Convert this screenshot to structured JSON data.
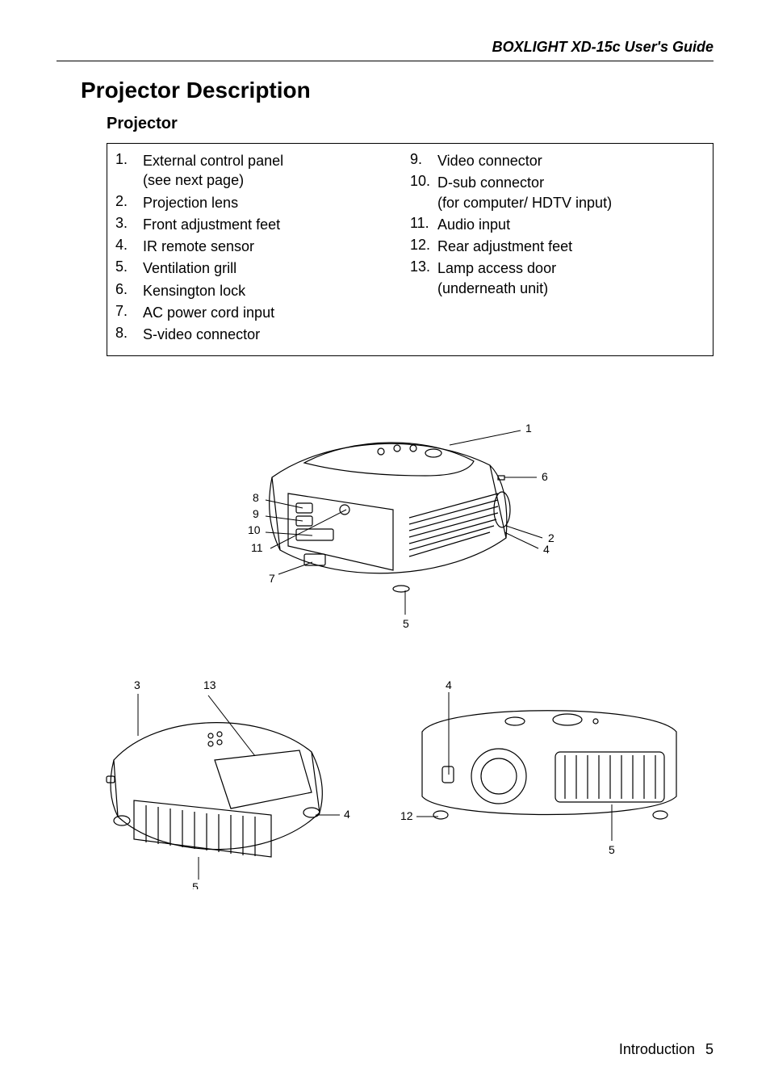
{
  "header": {
    "running": "BOXLIGHT XD-15c User's Guide"
  },
  "titles": {
    "section": "Projector Description",
    "subsection": "Projector"
  },
  "parts": {
    "left": [
      {
        "n": "1.",
        "label": "External control panel\n(see next page)"
      },
      {
        "n": "2.",
        "label": "Projection lens"
      },
      {
        "n": "3.",
        "label": "Front adjustment feet"
      },
      {
        "n": "4.",
        "label": "IR remote sensor"
      },
      {
        "n": "5.",
        "label": "Ventilation grill"
      },
      {
        "n": "6.",
        "label": "Kensington lock"
      },
      {
        "n": "7.",
        "label": "AC power cord input"
      },
      {
        "n": "8.",
        "label": "S-video connector"
      }
    ],
    "right": [
      {
        "n": "9.",
        "label": "Video connector"
      },
      {
        "n": "10.",
        "label": "D-sub connector\n(for computer/ HDTV input)"
      },
      {
        "n": "11.",
        "label": "Audio input"
      },
      {
        "n": "12.",
        "label": "Rear adjustment feet"
      },
      {
        "n": "13.",
        "label": "Lamp access door\n(underneath unit)"
      }
    ]
  },
  "callouts_top": [
    "1",
    "2",
    "4",
    "5",
    "6",
    "7",
    "8",
    "9",
    "10",
    "11"
  ],
  "callouts_bl": [
    "3",
    "4",
    "5",
    "13"
  ],
  "callouts_br": [
    "4",
    "5",
    "12"
  ],
  "footer": {
    "section": "Introduction",
    "page": "5"
  },
  "colors": {
    "stroke": "#000000",
    "bg": "#ffffff",
    "text": "#000000"
  }
}
